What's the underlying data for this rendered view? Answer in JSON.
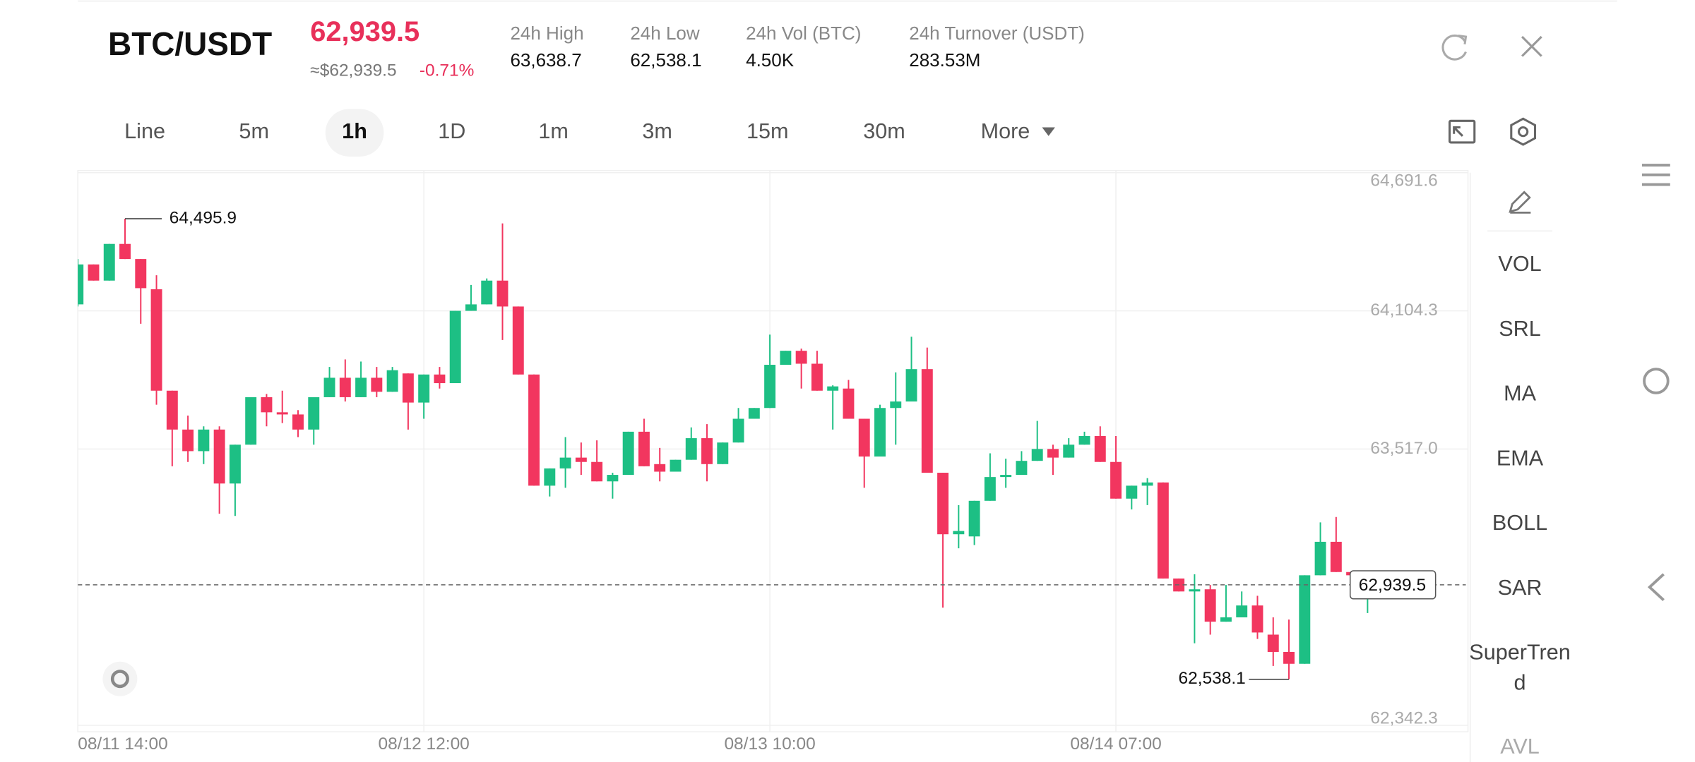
{
  "header": {
    "pair": "BTC/USDT",
    "price": "62,939.5",
    "fiat_price": "≈$62,939.5",
    "change": "-0.71%",
    "stats": [
      {
        "label": "24h High",
        "value": "63,638.7"
      },
      {
        "label": "24h Low",
        "value": "62,538.1"
      },
      {
        "label": "24h Vol (BTC)",
        "value": "4.50K"
      },
      {
        "label": "24h Turnover (USDT)",
        "value": "283.53M"
      }
    ]
  },
  "tabs": [
    "Line",
    "5m",
    "1h",
    "1D",
    "1m",
    "3m",
    "15m",
    "30m",
    "More"
  ],
  "active_tab": 2,
  "indicators": [
    "VOL",
    "SRL",
    "MA",
    "EMA",
    "BOLL",
    "SAR",
    "SuperTrend",
    "AVL"
  ],
  "chart_data": {
    "type": "candlestick",
    "categories": [
      "08/11 14:00",
      null,
      null,
      null,
      null,
      null,
      null,
      null,
      null,
      null,
      null,
      null,
      null,
      null,
      null,
      null,
      null,
      null,
      null,
      null,
      null,
      null,
      "08/12 12:00",
      null,
      null,
      null,
      null,
      null,
      null,
      null,
      null,
      null,
      null,
      null,
      null,
      null,
      null,
      null,
      null,
      null,
      null,
      null,
      null,
      null,
      "08/13 10:00",
      null,
      null,
      null,
      null,
      null,
      null,
      null,
      null,
      null,
      null,
      null,
      null,
      null,
      null,
      null,
      null,
      null,
      null,
      null,
      null,
      null,
      "08/14 07:00",
      null,
      null,
      null,
      null,
      null,
      null,
      null,
      null,
      null,
      null,
      null,
      null,
      null,
      null,
      null,
      null
    ],
    "open": [
      64131.8,
      64301.6,
      64232.8,
      64388.8,
      64324.6,
      64196.1,
      63764.8,
      63599.6,
      63507.8,
      63599.6,
      63370.2,
      63535.3,
      63737.2,
      63673,
      63663.8,
      63599.6,
      63737.2,
      63819.8,
      63737.2,
      63819.8,
      63760.2,
      63838.2,
      63714.3,
      63833.6,
      63796.9,
      64104.3,
      64131.8,
      64232.8,
      64122.7,
      63833.6,
      63361,
      63434.4,
      63480.3,
      63461.9,
      63379.3,
      63406.9,
      63590.4,
      63452.7,
      63420.6,
      63471.1,
      63562.9,
      63452.7,
      63544.5,
      63645.5,
      63691.3,
      63874.9,
      63934.5,
      63879.5,
      63764.8,
      63773.9,
      63645.5,
      63484.9,
      63691.3,
      63718.9,
      63856.5,
      63416,
      63154.5,
      63145.3,
      63296.7,
      63397.7,
      63406.9,
      63466.5,
      63517,
      63480.3,
      63535.3,
      63572,
      63461.9,
      63305.9,
      63361,
      63374.7,
      62966.4,
      62911.3,
      62920.5,
      62782.8,
      62801.2,
      62851.7,
      62727.8,
      62654.3,
      62603.9,
      62980.1,
      63122.4,
      62993.9,
      62936
    ],
    "high": [
      64324.6,
      64301.6,
      64388.8,
      64495.9,
      64324.6,
      64255.7,
      63764.8,
      63659.2,
      63613.3,
      63613.3,
      63535.3,
      63737.2,
      63751,
      63764.8,
      63682.2,
      63737.2,
      63865.7,
      63897.8,
      63888.7,
      63865.7,
      63865.7,
      63838.2,
      63833.6,
      63865.7,
      64104.3,
      64214.4,
      64242,
      64476,
      64122.7,
      63833.6,
      63434.4,
      63567.5,
      63544.5,
      63553.7,
      63416,
      63590.4,
      63645.5,
      63521.6,
      63471.1,
      63608.8,
      63622.5,
      63544.5,
      63691.3,
      63691.3,
      64003.4,
      63934.5,
      63943.7,
      63934.5,
      63787.7,
      63810.6,
      63645.5,
      63705.1,
      63842.8,
      63994.2,
      63948.3,
      63416,
      63278.4,
      63296.7,
      63498.6,
      63475.7,
      63507.8,
      63636.3,
      63535.3,
      63562.9,
      63590.4,
      63613.3,
      63572,
      63361,
      63393.1,
      63374.7,
      62966.4,
      62984.7,
      62938.8,
      62938.8,
      62911.3,
      62892.9,
      62801.2,
      62792,
      62980.1,
      63205,
      63227.9,
      62993.9,
      62943.4
    ],
    "low": [
      64122.7,
      64232.8,
      64232.8,
      64324.6,
      64049.2,
      63705.1,
      63443.6,
      63461.9,
      63452.7,
      63241.7,
      63232.5,
      63535.3,
      63613.3,
      63627.1,
      63567.5,
      63535.3,
      63737.2,
      63718.9,
      63737.2,
      63737.2,
      63760.2,
      63599.6,
      63645.5,
      63773.9,
      63796.9,
      64104.3,
      64131.8,
      63980.4,
      63833.6,
      63361,
      63315.1,
      63351.8,
      63406.9,
      63379.3,
      63305.9,
      63406.9,
      63443.6,
      63379.3,
      63420.6,
      63471.1,
      63379.3,
      63452.7,
      63544.5,
      63645.5,
      63691.3,
      63874.9,
      63773.9,
      63764.8,
      63599.6,
      63645.5,
      63351.8,
      63484.9,
      63535.3,
      63718.9,
      63416,
      62842.5,
      63094.8,
      63108.6,
      63296.7,
      63351.8,
      63406.9,
      63466.5,
      63406.9,
      63480.3,
      63535.3,
      63461.9,
      63305.9,
      63260,
      63278.4,
      62966.4,
      62911.3,
      62691.1,
      62727.8,
      62782.8,
      62801.2,
      62709.4,
      62594.7,
      62538.1,
      62603.9,
      62980.1,
      62993.9,
      62911.3,
      62819.5
    ],
    "close": [
      64301.6,
      64232.8,
      64388.8,
      64324.6,
      64200.7,
      63764.8,
      63599.6,
      63507.8,
      63599.6,
      63370.2,
      63535.3,
      63737.2,
      63673,
      63663.8,
      63599.6,
      63737.2,
      63819.8,
      63737.2,
      63819.8,
      63760.2,
      63851.9,
      63714.3,
      63833.6,
      63796.9,
      64104.3,
      64131.8,
      64232.8,
      64122.7,
      63833.6,
      63361,
      63434.4,
      63480.3,
      63461.9,
      63379.3,
      63406.9,
      63590.4,
      63443.6,
      63420.6,
      63471.1,
      63562.9,
      63452.7,
      63544.5,
      63645.5,
      63691.3,
      63874.9,
      63934.5,
      63879.5,
      63764.8,
      63783.1,
      63645.5,
      63484.9,
      63691.3,
      63718.9,
      63856.5,
      63416,
      63154.5,
      63168.3,
      63296.7,
      63397.7,
      63406.9,
      63466.5,
      63517,
      63480.3,
      63535.3,
      63572,
      63461.9,
      63305.9,
      63361,
      63374.7,
      62966.4,
      62911.3,
      62920.5,
      62782.8,
      62801.2,
      62851.7,
      62736.9,
      62654.3,
      62603.9,
      62980.1,
      63122.4,
      62993.9,
      62980.1,
      62939.5
    ],
    "up_color": "#1dbf84",
    "down_color": "#f2365f",
    "ylim": [
      62342.3,
      64691.6
    ],
    "yticks": [
      {
        "value": 64691.6,
        "label": "64,691.6"
      },
      {
        "value": 64104.3,
        "label": "64,104.3"
      },
      {
        "value": 63517.0,
        "label": "63,517.0"
      },
      {
        "value": 62342.3,
        "label": "62,342.3"
      }
    ],
    "grid": true,
    "high_label": "64,495.9",
    "low_label": "62,538.1",
    "last_price_label": "62,939.5"
  }
}
